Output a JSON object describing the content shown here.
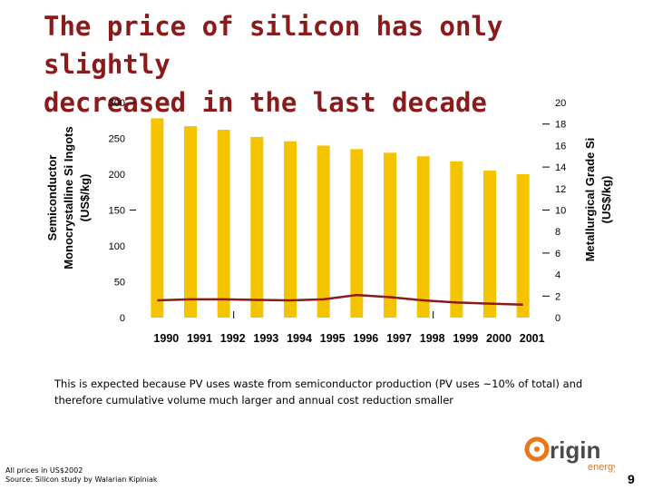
{
  "slide": {
    "title_line1": "The price of silicon has only slightly",
    "title_line2": "decreased in the last decade",
    "note": "This is expected because PV uses waste from semiconductor production (PV uses ~10% of total) and therefore cumulative volume much larger and annual cost reduction smaller",
    "footer_line1": "All prices in US$2002",
    "footer_line2": "Source: Silicon study by Walarian Kipiniak",
    "page_number": "9",
    "logo_text": "Origin",
    "logo_subtext": "energy"
  },
  "colors": {
    "title": "#8b1a1a",
    "bar": "#f5c400",
    "line": "#8b1a1a",
    "logo_orange": "#e8761b",
    "logo_gray": "#4a4a4a"
  },
  "chart_data": {
    "type": "bar+line",
    "categories": [
      "1990",
      "1991",
      "1992",
      "1993",
      "1994",
      "1995",
      "1996",
      "1997",
      "1998",
      "1999",
      "2000",
      "2001"
    ],
    "series": [
      {
        "name": "Semiconductor Monocrystalline Si Ingots (US$/kg)",
        "type": "bar",
        "axis": "left",
        "values": [
          278,
          267,
          262,
          252,
          246,
          240,
          235,
          230,
          225,
          218,
          205,
          200
        ]
      },
      {
        "name": "Metallurgical Grade Si (US$/kg)",
        "type": "line",
        "axis": "right",
        "values": [
          1.6,
          1.7,
          1.7,
          1.65,
          1.6,
          1.7,
          2.1,
          1.9,
          1.6,
          1.4,
          1.3,
          1.2
        ]
      }
    ],
    "left_axis": {
      "label_line1": "Semiconductor",
      "label_line2": "Monocrystalline Si Ingots",
      "label_line3": "(US$/kg)",
      "ticks": [
        "0",
        "50",
        "100",
        "150",
        "200",
        "250",
        "300"
      ],
      "ylim": [
        0,
        300
      ]
    },
    "right_axis": {
      "label_line1": "Metallurgical Grade Si",
      "label_line2": "(US$/kg)",
      "ticks": [
        "0",
        "2",
        "4",
        "6",
        "8",
        "10",
        "12",
        "14",
        "16",
        "18",
        "20"
      ],
      "ylim": [
        0,
        20
      ]
    }
  }
}
